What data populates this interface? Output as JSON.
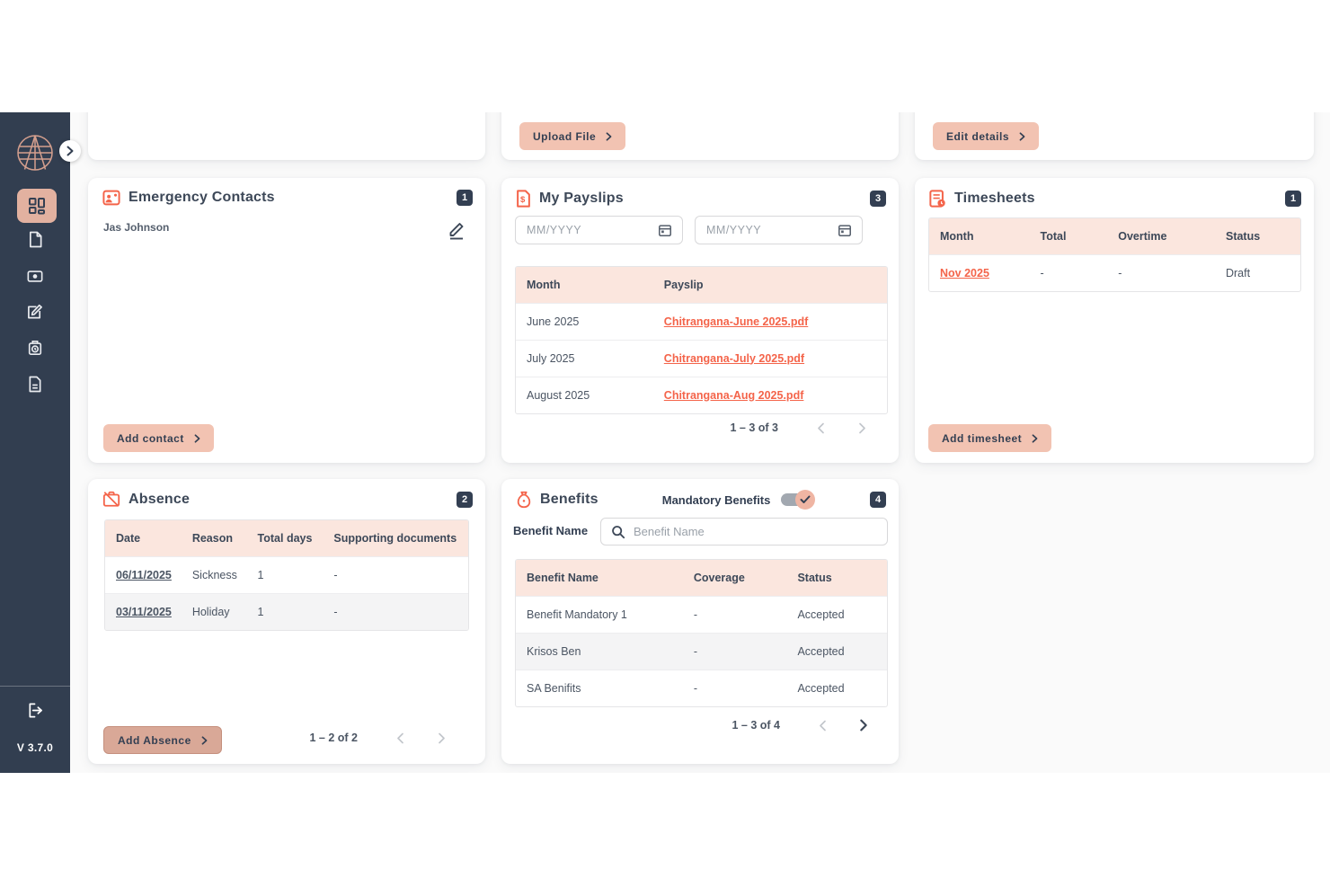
{
  "app": {
    "version": "V 3.7.0",
    "colors": {
      "sidebar_navy": "#323e50",
      "accent_salmon": "#f2c3b2",
      "active_nav_salmon": "#e2b1a0",
      "table_header_pink": "#fbe6de",
      "link_red": "#f4644a",
      "badge_navy": "#333f52",
      "main_background": "#fafafa"
    },
    "icons": {
      "logo": "globe-icon",
      "expand": "chevron-right-icon",
      "nav": [
        "dashboard-icon",
        "document-icon",
        "payslip-icon",
        "note-edit-icon",
        "punch-clock-icon",
        "file-text-icon"
      ],
      "logout": "logout-icon"
    }
  },
  "top_cards": {
    "upload_label": "Upload File",
    "edit_label": "Edit details"
  },
  "emergency_contacts": {
    "title": "Emergency Contacts",
    "badge": "1",
    "contact_name": "Jas Johnson",
    "add_label": "Add contact"
  },
  "payslips": {
    "title": "My Payslips",
    "badge": "3",
    "date_from_placeholder": "MM/YYYY",
    "date_to_placeholder": "MM/YYYY",
    "headers": [
      "Month",
      "Payslip"
    ],
    "rows": [
      [
        "June 2025",
        "Chitrangana-June 2025.pdf"
      ],
      [
        "July 2025",
        "Chitrangana-July 2025.pdf"
      ],
      [
        "August 2025",
        "Chitrangana-Aug 2025.pdf"
      ]
    ],
    "pagination": "1 – 3 of 3"
  },
  "timesheets": {
    "title": "Timesheets",
    "badge": "1",
    "headers": [
      "Month",
      "Total",
      "Overtime",
      "Status"
    ],
    "rows": [
      [
        "Nov 2025",
        "-",
        "-",
        "Draft"
      ]
    ],
    "add_label": "Add timesheet"
  },
  "absence": {
    "title": "Absence",
    "badge": "2",
    "headers": [
      "Date",
      "Reason",
      "Total days",
      "Supporting documents"
    ],
    "rows": [
      [
        "06/11/2025",
        "Sickness",
        "1",
        "-"
      ],
      [
        "03/11/2025",
        "Holiday",
        "1",
        "-"
      ]
    ],
    "add_label": "Add Absence",
    "pagination": "1 – 2 of 2"
  },
  "benefits": {
    "title": "Benefits",
    "badge": "4",
    "toggle_label": "Mandatory Benefits",
    "search_label": "Benefit Name",
    "search_placeholder": "Benefit Name",
    "headers": [
      "Benefit Name",
      "Coverage",
      "Status"
    ],
    "rows": [
      [
        "Benefit Mandatory 1",
        "-",
        "Accepted"
      ],
      [
        "Krisos Ben",
        "-",
        "Accepted"
      ],
      [
        "SA Benifits",
        "-",
        "Accepted"
      ]
    ],
    "pagination": "1 – 3 of 4"
  }
}
